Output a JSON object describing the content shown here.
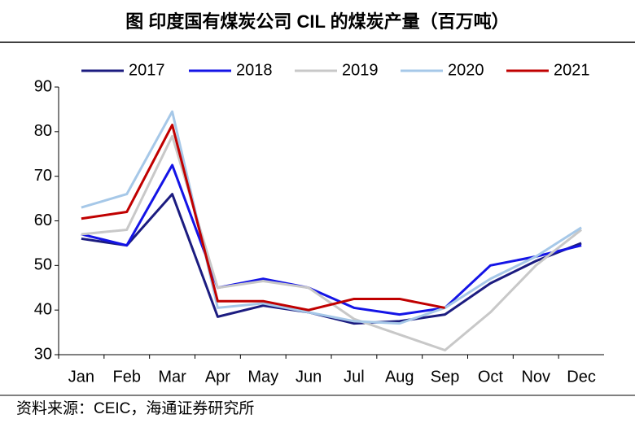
{
  "chart_data": {
    "type": "line",
    "title": "图 印度国有煤炭公司 CIL 的煤炭产量（百万吨）",
    "source": "资料来源：CEIC，海通证券研究所",
    "categories": [
      "Jan",
      "Feb",
      "Mar",
      "Apr",
      "May",
      "Jun",
      "Jul",
      "Aug",
      "Sep",
      "Oct",
      "Nov",
      "Dec"
    ],
    "series": [
      {
        "name": "2017",
        "color": "#1c1c80",
        "values": [
          56,
          54.5,
          66,
          38.5,
          41,
          39.5,
          37,
          37.5,
          39,
          46,
          51,
          55
        ]
      },
      {
        "name": "2018",
        "color": "#1414e6",
        "values": [
          57,
          54.5,
          72.5,
          45,
          47,
          45,
          40.5,
          39,
          40.5,
          50,
          52,
          54.5
        ]
      },
      {
        "name": "2019",
        "color": "#c8c8c8",
        "values": [
          57,
          58,
          79,
          45,
          46.5,
          45,
          38,
          34.5,
          31,
          39.5,
          50,
          58
        ]
      },
      {
        "name": "2020",
        "color": "#a6c8e8",
        "values": [
          63,
          66,
          84.5,
          40.5,
          41.5,
          39.5,
          37.5,
          37,
          40.5,
          47,
          52,
          58.5
        ]
      },
      {
        "name": "2021",
        "color": "#c00000",
        "values": [
          60.5,
          62,
          81.5,
          42,
          42,
          40,
          42.5,
          42.5,
          40.5,
          null,
          null,
          null
        ]
      }
    ],
    "ylim": [
      30,
      90
    ],
    "yticks": [
      30,
      40,
      50,
      60,
      70,
      80,
      90
    ],
    "legend": "top",
    "grid": false
  }
}
